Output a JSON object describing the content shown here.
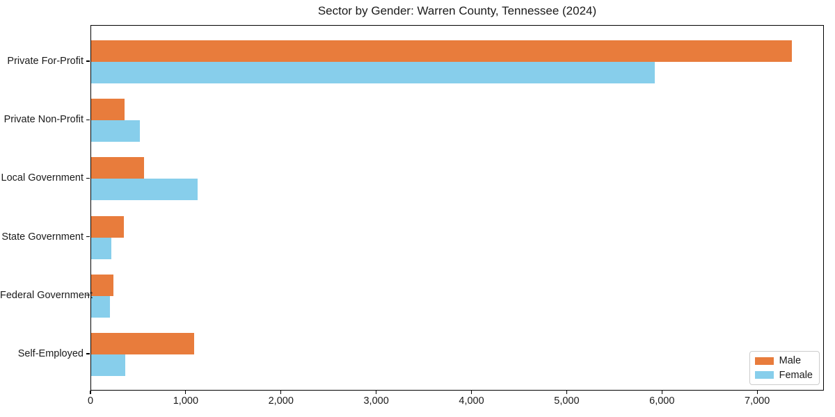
{
  "chart_data": {
    "type": "bar",
    "orientation": "horizontal",
    "title": "Sector by Gender: Warren County, Tennessee (2024)",
    "categories": [
      "Private For-Profit",
      "Private Non-Profit",
      "Local Government",
      "State Government",
      "Federal Government",
      "Self-Employed"
    ],
    "series": [
      {
        "name": "Male",
        "color": "#e87c3c",
        "values": [
          7360,
          350,
          555,
          345,
          235,
          1080
        ]
      },
      {
        "name": "Female",
        "color": "#87ceeb",
        "values": [
          5920,
          510,
          1120,
          210,
          195,
          360
        ]
      }
    ],
    "xlabel": "",
    "ylabel": "",
    "xlim": [
      0,
      7700
    ],
    "x_ticks": [
      0,
      1000,
      2000,
      3000,
      4000,
      5000,
      6000,
      7000
    ],
    "x_tick_labels": [
      "0",
      "1,000",
      "2,000",
      "3,000",
      "4,000",
      "5,000",
      "6,000",
      "7,000"
    ],
    "grid": false,
    "legend_position": "lower right"
  },
  "legend": {
    "items": [
      {
        "label": "Male",
        "color": "#e87c3c"
      },
      {
        "label": "Female",
        "color": "#87ceeb"
      }
    ]
  }
}
